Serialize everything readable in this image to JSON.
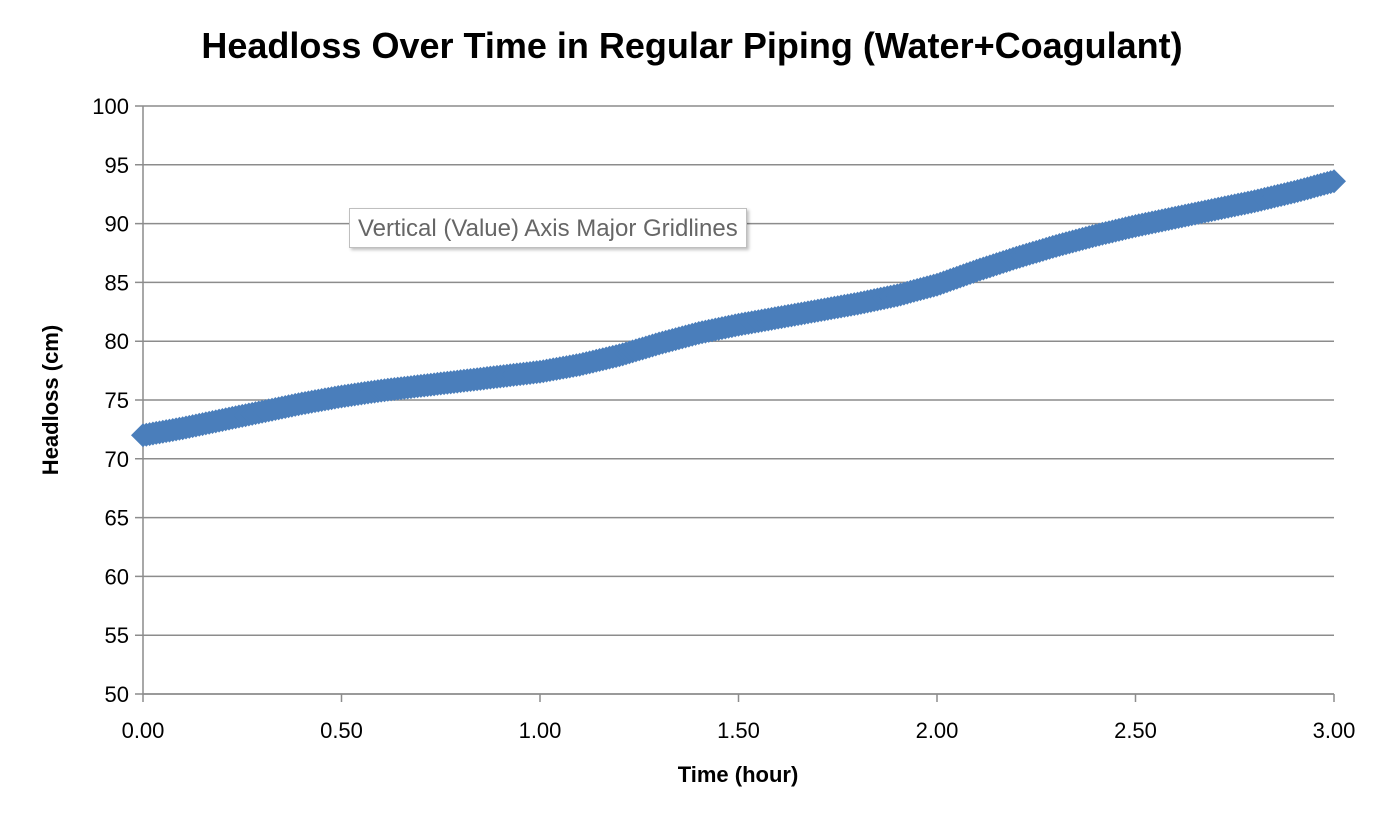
{
  "chart_data": {
    "type": "scatter",
    "title": "Headloss Over Time in Regular Piping (Water+Coagulant)",
    "xlabel": "Time (hour)",
    "ylabel": "Headloss (cm)",
    "xlim": [
      0,
      3
    ],
    "ylim": [
      50,
      100
    ],
    "xticks": [
      "0.00",
      "0.50",
      "1.00",
      "1.50",
      "2.00",
      "2.50",
      "3.00"
    ],
    "yticks": [
      "50",
      "55",
      "60",
      "65",
      "70",
      "75",
      "80",
      "85",
      "90",
      "95",
      "100"
    ],
    "grid": true,
    "legend": "none",
    "marker": "diamond",
    "series_color": "#4a7ebb",
    "gridline_color": "#8c8c8c",
    "series": [
      {
        "x": [
          0.0,
          0.1,
          0.2,
          0.3,
          0.4,
          0.5,
          0.6,
          0.7,
          0.8,
          0.9,
          1.0,
          1.1,
          1.2,
          1.3,
          1.4,
          1.5,
          1.6,
          1.7,
          1.8,
          1.9,
          2.0,
          2.1,
          2.2,
          2.3,
          2.4,
          2.5,
          2.6,
          2.7,
          2.8,
          2.9,
          3.0
        ],
        "y": [
          72.0,
          72.6,
          73.3,
          74.0,
          74.7,
          75.3,
          75.8,
          76.2,
          76.6,
          77.0,
          77.4,
          78.0,
          78.8,
          79.8,
          80.7,
          81.4,
          82.0,
          82.6,
          83.2,
          83.9,
          84.8,
          86.0,
          87.1,
          88.1,
          89.0,
          89.8,
          90.5,
          91.2,
          91.9,
          92.7,
          93.6
        ]
      }
    ]
  },
  "tooltip": {
    "text": "Vertical (Value) Axis Major Gridlines"
  }
}
